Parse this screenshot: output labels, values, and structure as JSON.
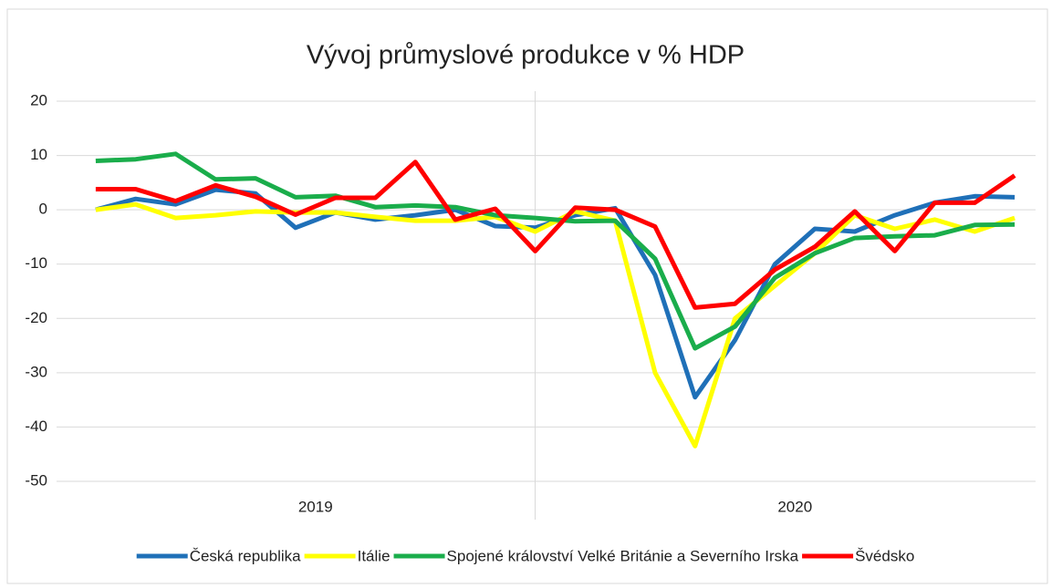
{
  "chart_data": {
    "type": "line",
    "title": "Vývoj průmyslové produkce v % HDP",
    "categories": [
      null,
      null,
      null,
      null,
      null,
      null,
      null,
      null,
      null,
      null,
      null,
      null,
      null,
      null,
      null,
      null,
      null,
      null,
      null,
      null,
      null,
      null,
      null,
      null
    ],
    "groups": [
      "2019",
      "2020"
    ],
    "ylim": [
      -50,
      20
    ],
    "yticks": [
      -50,
      -40,
      -30,
      -20,
      -10,
      0,
      10,
      20
    ],
    "grid": true,
    "legend": "bottom",
    "series": [
      {
        "name": "Česká republika",
        "color": "#1f70b8",
        "values": [
          0,
          2,
          1,
          3.7,
          3,
          -3.3,
          -0.5,
          -1.8,
          -1,
          0,
          -3,
          -3.3,
          -1,
          0.3,
          -12,
          -34.5,
          -24,
          -10,
          -3.5,
          -4,
          -1,
          1.3,
          2.5,
          2.3
        ]
      },
      {
        "name": "Itálie",
        "color": "#ffff00",
        "values": [
          0,
          1,
          -1.5,
          -1,
          -0.3,
          -0.5,
          -0.5,
          -1.3,
          -2,
          -2,
          -1.3,
          -4,
          -0.3,
          -2,
          -30,
          -43.5,
          -20,
          -14,
          -8,
          -1,
          -3.5,
          -1.8,
          -4,
          -1.5
        ]
      },
      {
        "name": "Spojené království Velké Británie a Severního Irska",
        "color": "#1aad4b",
        "values": [
          9,
          9.3,
          10.3,
          5.6,
          5.8,
          2.3,
          2.6,
          0.5,
          0.8,
          0.5,
          -1,
          -1.5,
          -2.1,
          -2,
          -9,
          -25.5,
          -21.5,
          -12.5,
          -8,
          -5.2,
          -4.9,
          -4.7,
          -2.8,
          -2.7
        ]
      },
      {
        "name": "Švédsko",
        "color": "#ff0000",
        "values": [
          3.8,
          3.8,
          1.6,
          4.5,
          2.4,
          -0.9,
          2.2,
          2.2,
          8.8,
          -1.8,
          0.2,
          -7.6,
          0.4,
          0,
          -3.1,
          -18,
          -17.3,
          -11,
          -6.8,
          -0.3,
          -7.6,
          1.3,
          1.3,
          6.3
        ]
      }
    ]
  }
}
